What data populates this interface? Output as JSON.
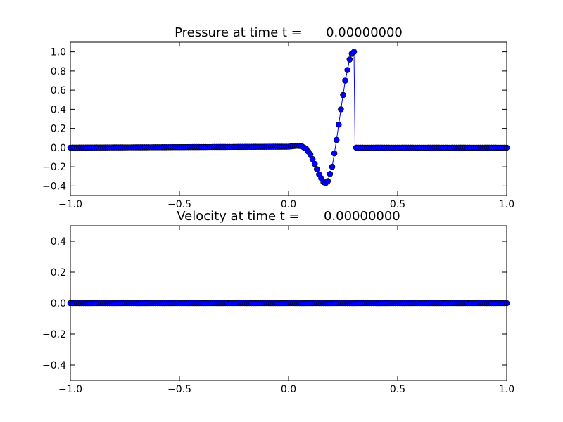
{
  "chart_data": [
    {
      "type": "line",
      "title": "Pressure at time t =      0.00000000",
      "xlim": [
        -1.0,
        1.0
      ],
      "ylim": [
        -0.5,
        1.1
      ],
      "xticks": [
        -1.0,
        -0.5,
        0.0,
        0.5,
        1.0
      ],
      "xtick_labels": [
        "−1.0",
        "−0.5",
        "0.0",
        "0.5",
        "1.0"
      ],
      "yticks": [
        -0.4,
        -0.2,
        0.0,
        0.2,
        0.4,
        0.6,
        0.8,
        1.0
      ],
      "ytick_labels": [
        "−0.4",
        "−0.2",
        "0.0",
        "0.2",
        "0.4",
        "0.6",
        "0.8",
        "1.0"
      ],
      "grid": false,
      "series": [
        {
          "color": "#0000ff",
          "marker": "circle",
          "x": [
            -1.0,
            0.0,
            0.02,
            0.04,
            0.06,
            0.08,
            0.1,
            0.12,
            0.14,
            0.16,
            0.17,
            0.18,
            0.2,
            0.22,
            0.24,
            0.26,
            0.28,
            0.29,
            0.3,
            0.305,
            1.0
          ],
          "y": [
            0.0,
            0.01,
            0.015,
            0.02,
            0.015,
            -0.01,
            -0.07,
            -0.17,
            -0.28,
            -0.36,
            -0.37,
            -0.35,
            -0.2,
            0.08,
            0.4,
            0.7,
            0.92,
            0.98,
            1.0,
            0.0,
            0.0
          ]
        }
      ]
    },
    {
      "type": "line",
      "title": "Velocity at time t =      0.00000000",
      "xlim": [
        -1.0,
        1.0
      ],
      "ylim": [
        -0.5,
        0.5
      ],
      "xticks": [
        -1.0,
        -0.5,
        0.0,
        0.5,
        1.0
      ],
      "xtick_labels": [
        "−1.0",
        "−0.5",
        "0.0",
        "0.5",
        "1.0"
      ],
      "yticks": [
        -0.4,
        -0.2,
        0.0,
        0.2,
        0.4
      ],
      "ytick_labels": [
        "−0.4",
        "−0.2",
        "0.0",
        "0.2",
        "0.4"
      ],
      "grid": false,
      "series": [
        {
          "color": "#0000ff",
          "marker": "circle",
          "x": [
            -1.0,
            1.0
          ],
          "y": [
            0.0,
            0.0
          ]
        }
      ]
    }
  ]
}
